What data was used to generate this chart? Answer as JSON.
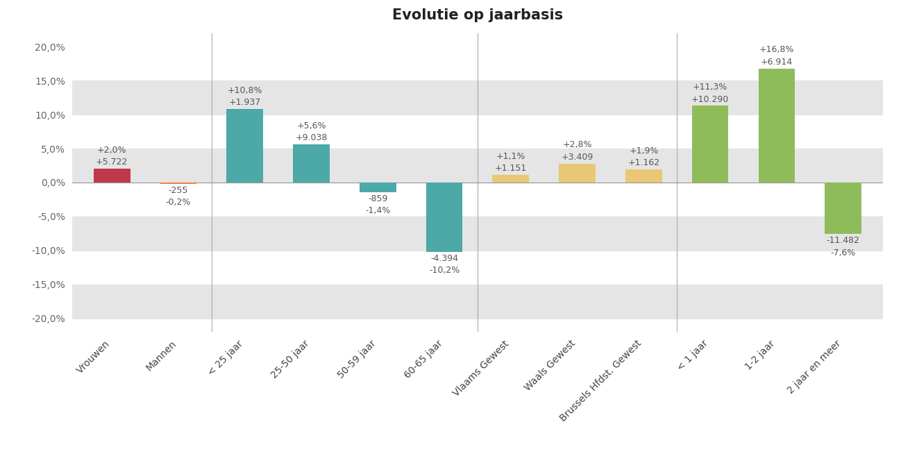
{
  "title": "Evolutie op jaarbasis",
  "categories": [
    "Vrouwen",
    "Mannen",
    "< 25 jaar",
    "25-50 jaar",
    "50-59 jaar",
    "60-65 jaar",
    "Vlaams Gewest",
    "Waals Gewest",
    "Brussels Hfdst. Gewest",
    "< 1 jaar",
    "1-2 jaar",
    "2 jaar en meer"
  ],
  "values": [
    2.0,
    -0.2,
    10.8,
    5.6,
    -1.4,
    -10.2,
    1.1,
    2.8,
    1.9,
    11.3,
    16.8,
    -7.6
  ],
  "labels_pct": [
    "+2,0%",
    "-0,2%",
    "+10,8%",
    "+5,6%",
    "-1,4%",
    "-10,2%",
    "+1,1%",
    "+2,8%",
    "+1,9%",
    "+11,3%",
    "+16,8%",
    "-7,6%"
  ],
  "labels_abs": [
    "+5.722",
    "-255",
    "+1.937",
    "+9.038",
    "-859",
    "-4.394",
    "+1.151",
    "+3.409",
    "+1.162",
    "+10.290",
    "+6.914",
    "-11.482"
  ],
  "bar_colors": [
    "#c0394b",
    "#e8834a",
    "#4da8a8",
    "#4da8a8",
    "#4da8a8",
    "#4da8a8",
    "#e8c875",
    "#e8c875",
    "#e8c875",
    "#8fbc5a",
    "#8fbc5a",
    "#8fbc5a"
  ],
  "ylim": [
    -22,
    22
  ],
  "yticks": [
    -20,
    -15,
    -10,
    -5,
    0,
    5,
    10,
    15,
    20
  ],
  "ytick_labels": [
    "-20,0%",
    "-15,0%",
    "-10,0%",
    "-5,0%",
    "0,0%",
    "5,0%",
    "10,0%",
    "15,0%",
    "20,0%"
  ],
  "background_color": "#ffffff",
  "stripe_color": "#e5e5e5",
  "title_fontsize": 15,
  "label_fontsize": 9,
  "tick_fontsize": 10,
  "label_color": "#555555"
}
